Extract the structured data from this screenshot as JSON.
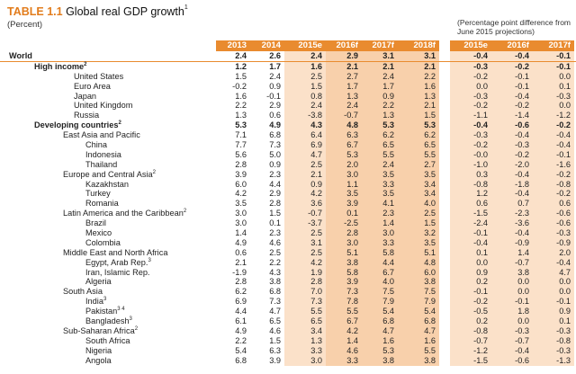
{
  "title": {
    "number": "TABLE 1.1",
    "text": "Global real GDP growth",
    "sup": "1"
  },
  "subtitle": "(Percent)",
  "note": "(Percentage point difference from June 2015 projections)",
  "columns": [
    "2013",
    "2014",
    "2015e",
    "2016f",
    "2017f",
    "2018f",
    "2015e",
    "2016f",
    "2017f"
  ],
  "rows": [
    {
      "label": "World",
      "sup": "",
      "level": 0,
      "values": [
        "2.4",
        "2.6",
        "2.4",
        "2.9",
        "3.1",
        "3.1",
        "-0.4",
        "-0.4",
        "-0.1"
      ]
    },
    {
      "label": "High income",
      "sup": "2",
      "level": 1,
      "values": [
        "1.2",
        "1.7",
        "1.6",
        "2.1",
        "2.1",
        "2.1",
        "-0.3",
        "-0.2",
        "-0.1"
      ]
    },
    {
      "label": "United States",
      "sup": "",
      "level": 2,
      "values": [
        "1.5",
        "2.4",
        "2.5",
        "2.7",
        "2.4",
        "2.2",
        "-0.2",
        "-0.1",
        "0.0"
      ]
    },
    {
      "label": "Euro Area",
      "sup": "",
      "level": 2,
      "values": [
        "-0.2",
        "0.9",
        "1.5",
        "1.7",
        "1.7",
        "1.6",
        "0.0",
        "-0.1",
        "0.1"
      ]
    },
    {
      "label": "Japan",
      "sup": "",
      "level": 2,
      "values": [
        "1.6",
        "-0.1",
        "0.8",
        "1.3",
        "0.9",
        "1.3",
        "-0.3",
        "-0.4",
        "-0.3"
      ]
    },
    {
      "label": "United Kingdom",
      "sup": "",
      "level": 2,
      "values": [
        "2.2",
        "2.9",
        "2.4",
        "2.4",
        "2.2",
        "2.1",
        "-0.2",
        "-0.2",
        "0.0"
      ]
    },
    {
      "label": "Russia",
      "sup": "",
      "level": 2,
      "values": [
        "1.3",
        "0.6",
        "-3.8",
        "-0.7",
        "1.3",
        "1.5",
        "-1.1",
        "-1.4",
        "-1.2"
      ]
    },
    {
      "label": "Developing countries",
      "sup": "2",
      "level": 1,
      "values": [
        "5.3",
        "4.9",
        "4.3",
        "4.8",
        "5.3",
        "5.3",
        "-0.4",
        "-0.6",
        "-0.2"
      ]
    },
    {
      "label": "East Asia and Pacific",
      "sup": "",
      "level": 3,
      "values": [
        "7.1",
        "6.8",
        "6.4",
        "6.3",
        "6.2",
        "6.2",
        "-0.3",
        "-0.4",
        "-0.4"
      ]
    },
    {
      "label": "China",
      "sup": "",
      "level": 4,
      "values": [
        "7.7",
        "7.3",
        "6.9",
        "6.7",
        "6.5",
        "6.5",
        "-0.2",
        "-0.3",
        "-0.4"
      ]
    },
    {
      "label": "Indonesia",
      "sup": "",
      "level": 4,
      "values": [
        "5.6",
        "5.0",
        "4.7",
        "5.3",
        "5.5",
        "5.5",
        "-0.0",
        "-0.2",
        "-0.1"
      ]
    },
    {
      "label": "Thailand",
      "sup": "",
      "level": 4,
      "values": [
        "2.8",
        "0.9",
        "2.5",
        "2.0",
        "2.4",
        "2.7",
        "-1.0",
        "-2.0",
        "-1.6"
      ]
    },
    {
      "label": "Europe and Central Asia",
      "sup": "2",
      "level": 3,
      "values": [
        "3.9",
        "2.3",
        "2.1",
        "3.0",
        "3.5",
        "3.5",
        "0.3",
        "-0.4",
        "-0.2"
      ]
    },
    {
      "label": "Kazakhstan",
      "sup": "",
      "level": 4,
      "values": [
        "6.0",
        "4.4",
        "0.9",
        "1.1",
        "3.3",
        "3.4",
        "-0.8",
        "-1.8",
        "-0.8"
      ]
    },
    {
      "label": "Turkey",
      "sup": "",
      "level": 4,
      "values": [
        "4.2",
        "2.9",
        "4.2",
        "3.5",
        "3.5",
        "3.4",
        "1.2",
        "-0.4",
        "-0.2"
      ]
    },
    {
      "label": "Romania",
      "sup": "",
      "level": 4,
      "values": [
        "3.5",
        "2.8",
        "3.6",
        "3.9",
        "4.1",
        "4.0",
        "0.6",
        "0.7",
        "0.6"
      ]
    },
    {
      "label": "Latin America and the Caribbean",
      "sup": "2",
      "level": 3,
      "values": [
        "3.0",
        "1.5",
        "-0.7",
        "0.1",
        "2.3",
        "2.5",
        "-1.5",
        "-2.3",
        "-0.6"
      ]
    },
    {
      "label": "Brazil",
      "sup": "",
      "level": 4,
      "values": [
        "3.0",
        "0.1",
        "-3.7",
        "-2.5",
        "1.4",
        "1.5",
        "-2.4",
        "-3.6",
        "-0.6"
      ]
    },
    {
      "label": "Mexico",
      "sup": "",
      "level": 4,
      "values": [
        "1.4",
        "2.3",
        "2.5",
        "2.8",
        "3.0",
        "3.2",
        "-0.1",
        "-0.4",
        "-0.3"
      ]
    },
    {
      "label": "Colombia",
      "sup": "",
      "level": 4,
      "values": [
        "4.9",
        "4.6",
        "3.1",
        "3.0",
        "3.3",
        "3.5",
        "-0.4",
        "-0.9",
        "-0.9"
      ]
    },
    {
      "label": "Middle East and North Africa",
      "sup": "",
      "level": 3,
      "values": [
        "0.6",
        "2.5",
        "2.5",
        "5.1",
        "5.8",
        "5.1",
        "0.1",
        "1.4",
        "2.0"
      ]
    },
    {
      "label": "Egypt, Arab Rep.",
      "sup": "3",
      "level": 4,
      "values": [
        "2.1",
        "2.2",
        "4.2",
        "3.8",
        "4.4",
        "4.8",
        "0.0",
        "-0.7",
        "-0.4"
      ]
    },
    {
      "label": "Iran, Islamic Rep.",
      "sup": "",
      "level": 4,
      "values": [
        "-1.9",
        "4.3",
        "1.9",
        "5.8",
        "6.7",
        "6.0",
        "0.9",
        "3.8",
        "4.7"
      ]
    },
    {
      "label": "Algeria",
      "sup": "",
      "level": 4,
      "values": [
        "2.8",
        "3.8",
        "2.8",
        "3.9",
        "4.0",
        "3.8",
        "0.2",
        "0.0",
        "0.0"
      ]
    },
    {
      "label": "South Asia",
      "sup": "",
      "level": 3,
      "values": [
        "6.2",
        "6.8",
        "7.0",
        "7.3",
        "7.5",
        "7.5",
        "-0.1",
        "0.0",
        "0.0"
      ]
    },
    {
      "label": "India",
      "sup": "3",
      "level": 4,
      "values": [
        "6.9",
        "7.3",
        "7.3",
        "7.8",
        "7.9",
        "7.9",
        "-0.2",
        "-0.1",
        "-0.1"
      ]
    },
    {
      "label": "Pakistan",
      "sup": "3 4",
      "level": 4,
      "values": [
        "4.4",
        "4.7",
        "5.5",
        "5.5",
        "5.4",
        "5.4",
        "-0.5",
        "1.8",
        "0.9"
      ]
    },
    {
      "label": "Bangladesh",
      "sup": "3",
      "level": 4,
      "values": [
        "6.1",
        "6.5",
        "6.5",
        "6.7",
        "6.8",
        "6.8",
        "0.2",
        "0.0",
        "0.1"
      ]
    },
    {
      "label": "Sub-Saharan Africa",
      "sup": "2",
      "level": 3,
      "values": [
        "4.9",
        "4.6",
        "3.4",
        "4.2",
        "4.7",
        "4.7",
        "-0.8",
        "-0.3",
        "-0.3"
      ]
    },
    {
      "label": "South Africa",
      "sup": "",
      "level": 4,
      "values": [
        "2.2",
        "1.5",
        "1.3",
        "1.4",
        "1.6",
        "1.6",
        "-0.7",
        "-0.7",
        "-0.8"
      ]
    },
    {
      "label": "Nigeria",
      "sup": "",
      "level": 4,
      "values": [
        "5.4",
        "6.3",
        "3.3",
        "4.6",
        "5.3",
        "5.5",
        "-1.2",
        "-0.4",
        "-0.3"
      ]
    },
    {
      "label": "Angola",
      "sup": "",
      "level": 4,
      "values": [
        "6.8",
        "3.9",
        "3.0",
        "3.3",
        "3.8",
        "3.8",
        "-1.5",
        "-0.6",
        "-1.3"
      ]
    }
  ]
}
